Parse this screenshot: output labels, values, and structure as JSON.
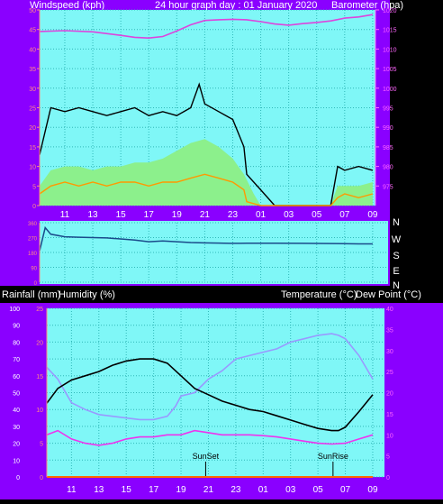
{
  "colors": {
    "frame": "#000000",
    "border": "#8a00ff",
    "plot_bg": "#7ff7f7",
    "grid": "#30b8b8",
    "text": "#ffffff",
    "axis_left": "#ff8888",
    "axis_right": "#ff66ff",
    "axis_white": "#ffffff",
    "avg_fill": "#8cf08c",
    "gust_line": "#000000",
    "wind_orange": "#ff9900",
    "pressure": "#dd44dd",
    "direction": "#1a4a8a",
    "temperature": "#000000",
    "humidity": "#9999ff",
    "dewpoint": "#ee33ee",
    "rainfall": "#ff6600"
  },
  "chart_data": [
    {
      "type": "area",
      "title": "24 hour graph day : 01 January 2020",
      "left_label": "Windspeed (kph)",
      "right_label": "Barometer (hpa)",
      "x_ticks": [
        "11",
        "13",
        "15",
        "17",
        "19",
        "21",
        "23",
        "01",
        "03",
        "05",
        "07",
        "09"
      ],
      "y_left": {
        "min": 0,
        "max": 50,
        "ticks": [
          0,
          5,
          10,
          15,
          20,
          25,
          30,
          35,
          40,
          45,
          50
        ]
      },
      "y_right": {
        "min": 970,
        "max": 1020,
        "ticks": [
          975,
          980,
          985,
          990,
          995,
          1000,
          1005,
          1010,
          1015,
          1020
        ]
      },
      "grid": true,
      "series": [
        {
          "role": "gust",
          "style": "line",
          "x": [
            9.2,
            10,
            11,
            12,
            13,
            14,
            15,
            16,
            17,
            18,
            19,
            20,
            20.6,
            21,
            22,
            23,
            23.8,
            24,
            25,
            26,
            27,
            28,
            29,
            30,
            30.5,
            31,
            32,
            33
          ],
          "y": [
            13,
            25,
            24,
            25,
            24,
            23,
            24,
            25,
            23,
            24,
            23,
            25,
            31,
            26,
            24,
            22,
            15,
            8,
            4,
            0,
            0,
            0,
            0,
            0,
            10,
            9,
            10,
            9
          ]
        },
        {
          "role": "average",
          "style": "area",
          "x": [
            9.2,
            10,
            11,
            12,
            13,
            14,
            15,
            16,
            17,
            18,
            19,
            20,
            21,
            22,
            23,
            23.8,
            24.5,
            25,
            26,
            27,
            28,
            29,
            30,
            30.5,
            31,
            32,
            33
          ],
          "y": [
            5,
            9,
            10,
            10,
            9,
            10,
            10,
            11,
            11,
            12,
            14,
            16,
            17,
            15,
            12,
            8,
            3,
            0,
            0,
            0,
            0,
            0,
            0,
            5,
            5,
            5,
            6
          ]
        },
        {
          "role": "wind",
          "style": "line",
          "x": [
            9.2,
            10,
            11,
            12,
            13,
            14,
            15,
            16,
            17,
            18,
            19,
            20,
            21,
            22,
            23,
            23.8,
            24,
            25,
            26,
            27,
            28,
            29,
            30,
            30.5,
            31,
            32,
            33
          ],
          "y": [
            3,
            5,
            6,
            5,
            6,
            5,
            6,
            6,
            5,
            6,
            6,
            7,
            8,
            7,
            6,
            4,
            1,
            0,
            0,
            0,
            0,
            0,
            0,
            2,
            3,
            2,
            3
          ]
        },
        {
          "role": "pressure",
          "style": "line",
          "axis": "right",
          "x": [
            9.2,
            11,
            13,
            15,
            16,
            17,
            18,
            19,
            20,
            21,
            22,
            23,
            24,
            25,
            26,
            27,
            28,
            29,
            30,
            31,
            32,
            33
          ],
          "y": [
            1014.5,
            1014.7,
            1014.4,
            1013.5,
            1013,
            1012.8,
            1013.2,
            1014.6,
            1016.2,
            1017.3,
            1017.5,
            1017.6,
            1017.5,
            1017,
            1016.4,
            1016.1,
            1016.5,
            1016.8,
            1017.2,
            1017.9,
            1018.2,
            1018.8
          ]
        }
      ]
    },
    {
      "type": "line",
      "right_letters": [
        "N",
        "W",
        "S",
        "E",
        "N"
      ],
      "x_ticks": [
        "11",
        "13",
        "15",
        "17",
        "19",
        "21",
        "23",
        "01",
        "03",
        "05",
        "07",
        "09"
      ],
      "y_left": {
        "min": 0,
        "max": 360,
        "ticks": [
          360,
          270,
          180,
          90,
          0
        ]
      },
      "series": [
        {
          "role": "wind_direction",
          "x": [
            9.2,
            9.6,
            10,
            11,
            12,
            13,
            14,
            15,
            16,
            17,
            18,
            19,
            20,
            21,
            22,
            23,
            23.5,
            24,
            26,
            28,
            30,
            32,
            33
          ],
          "y": [
            190,
            330,
            290,
            275,
            272,
            270,
            268,
            262,
            255,
            245,
            250,
            245,
            240,
            238,
            237,
            235,
            235,
            236,
            236,
            235,
            234,
            232,
            232
          ]
        }
      ]
    },
    {
      "type": "line",
      "labels": {
        "rainfall": "Rainfall (mm)",
        "humidity": "Humidity (%)",
        "temperature": "Temperature (°C)",
        "dewpoint": "Dew Point (°C)"
      },
      "x_ticks": [
        "11",
        "13",
        "15",
        "17",
        "19",
        "21",
        "23",
        "01",
        "03",
        "05",
        "07",
        "09"
      ],
      "y_left_outer": {
        "min": 0,
        "max": 100,
        "ticks": [
          0,
          10,
          20,
          30,
          40,
          50,
          60,
          70,
          80,
          90,
          100
        ]
      },
      "y_left_inner": {
        "min": 0,
        "max": 25,
        "ticks": [
          0,
          5,
          10,
          15,
          20,
          25
        ]
      },
      "y_right": {
        "min": 0,
        "max": 40,
        "ticks": [
          0,
          5,
          10,
          15,
          20,
          25,
          30,
          35,
          40
        ]
      },
      "annotations": [
        {
          "label": "SunSet",
          "x": 20.8
        },
        {
          "label": "SunRise",
          "x": 30.1
        }
      ],
      "series": [
        {
          "role": "temperature",
          "axis": "right",
          "x": [
            9.2,
            10,
            11,
            12,
            13,
            14,
            15,
            16,
            17,
            18,
            19,
            20,
            21,
            22,
            23,
            24,
            25,
            26,
            27,
            28,
            29,
            30,
            30.5,
            31,
            32,
            33
          ],
          "y": [
            17.5,
            21,
            23,
            24,
            25,
            26.5,
            27.5,
            28,
            28,
            27,
            24,
            21,
            19.5,
            18,
            17,
            16,
            15.5,
            14.5,
            13.5,
            12.5,
            11.5,
            11,
            11,
            11.8,
            15.5,
            19.5
          ]
        },
        {
          "role": "humidity",
          "axis": "left_outer",
          "x": [
            9.2,
            10,
            11,
            12,
            13,
            14,
            15,
            16,
            17,
            18,
            18.6,
            19,
            20,
            21,
            22,
            23,
            24,
            25,
            26,
            27,
            28,
            29,
            30,
            30.5,
            31,
            32,
            33
          ],
          "y": [
            65,
            58,
            44,
            40,
            37,
            36,
            35,
            34,
            34,
            36,
            42,
            48,
            50,
            58,
            63,
            70,
            72,
            74,
            76,
            80,
            82,
            84,
            85,
            84,
            82,
            72,
            58
          ]
        },
        {
          "role": "dewpoint",
          "axis": "right",
          "x": [
            9.2,
            10,
            11,
            12,
            13,
            14,
            15,
            16,
            17,
            18,
            19,
            20,
            21,
            22,
            23,
            24,
            25,
            26,
            27,
            28,
            29,
            30,
            31,
            32,
            33
          ],
          "y": [
            10,
            11,
            9,
            8,
            7.5,
            8,
            9,
            9.5,
            9.5,
            10,
            10,
            11,
            10.5,
            10,
            10,
            10,
            9.8,
            9.5,
            9,
            8.5,
            8,
            7.8,
            8,
            9,
            10
          ]
        },
        {
          "role": "rainfall",
          "axis": "left_inner",
          "x": [
            9.2,
            33
          ],
          "y": [
            0,
            0
          ]
        }
      ]
    }
  ]
}
